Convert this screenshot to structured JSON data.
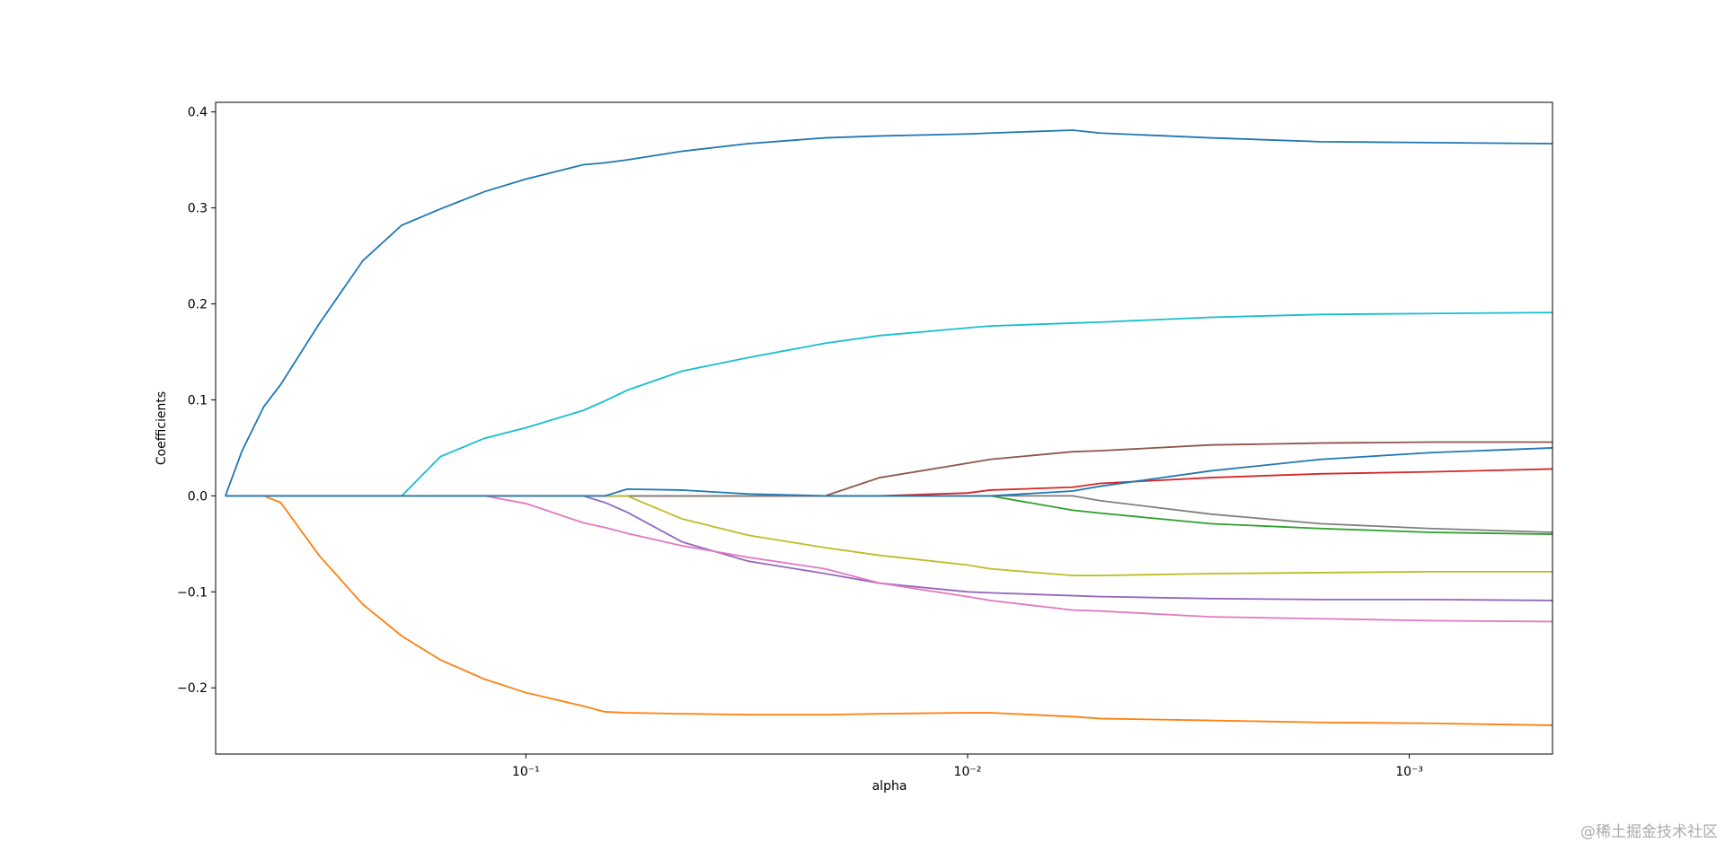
{
  "chart_data": {
    "type": "line",
    "xlabel": "alpha",
    "ylabel": "Coefficients",
    "xscale": "log",
    "xlim": [
      0.504,
      0.000474
    ],
    "ylim": [
      -0.269,
      0.41
    ],
    "xticks": [
      {
        "value": 0.1,
        "label": "10⁻¹"
      },
      {
        "value": 0.01,
        "label": "10⁻²"
      },
      {
        "value": 0.001,
        "label": "10⁻³"
      }
    ],
    "yticks": [
      {
        "value": -0.2,
        "label": "−0.2"
      },
      {
        "value": -0.1,
        "label": "−0.1"
      },
      {
        "value": 0,
        "label": "0.0"
      },
      0.1,
      0.2,
      0.3,
      0.4
    ],
    "x": [
      0.479,
      0.439,
      0.392,
      0.359,
      0.294,
      0.234,
      0.191,
      0.156,
      0.124,
      0.1,
      0.0742,
      0.0662,
      0.059,
      0.0443,
      0.0314,
      0.021,
      0.0158,
      0.01,
      0.00889,
      0.00578,
      0.00501,
      0.00282,
      0.00159,
      0.000897,
      0.000474
    ],
    "series": [
      {
        "color": "#1f77b4",
        "values": [
          0,
          0.047,
          0.093,
          0.116,
          0.179,
          0.245,
          0.282,
          0.299,
          0.317,
          0.33,
          0.345,
          0.347,
          0.35,
          0.359,
          0.367,
          0.373,
          0.375,
          0.377,
          0.378,
          0.381,
          0.378,
          0.373,
          0.369,
          0.368,
          0.367
        ]
      },
      {
        "color": "#ff7f0e",
        "values": [
          0,
          0,
          0,
          -0.007,
          -0.062,
          -0.113,
          -0.146,
          -0.171,
          -0.191,
          -0.205,
          -0.219,
          -0.225,
          -0.226,
          -0.227,
          -0.228,
          -0.228,
          -0.227,
          -0.226,
          -0.226,
          -0.23,
          -0.232,
          -0.234,
          -0.236,
          -0.237,
          -0.239
        ]
      },
      {
        "color": "#2ca02c",
        "values": [
          0,
          0,
          0,
          0,
          0,
          0,
          0,
          0,
          0,
          0,
          0,
          0,
          0,
          0,
          0,
          0,
          0,
          0,
          0,
          -0.015,
          -0.018,
          -0.029,
          -0.034,
          -0.038,
          -0.04
        ]
      },
      {
        "color": "#d62728",
        "values": [
          0,
          0,
          0,
          0,
          0,
          0,
          0,
          0,
          0,
          0,
          0,
          0,
          0,
          0,
          0,
          0,
          0,
          0.003,
          0.006,
          0.009,
          0.013,
          0.019,
          0.023,
          0.025,
          0.028
        ]
      },
      {
        "color": "#9467bd",
        "values": [
          0,
          0,
          0,
          0,
          0,
          0,
          0,
          0,
          0,
          0,
          0,
          -0.007,
          -0.017,
          -0.048,
          -0.068,
          -0.081,
          -0.091,
          -0.1,
          -0.101,
          -0.104,
          -0.105,
          -0.107,
          -0.108,
          -0.108,
          -0.109
        ]
      },
      {
        "color": "#8c564b",
        "values": [
          0,
          0,
          0,
          0,
          0,
          0,
          0,
          0,
          0,
          0,
          0,
          0,
          0,
          0,
          0,
          0,
          0.019,
          0.034,
          0.038,
          0.046,
          0.047,
          0.053,
          0.055,
          0.056,
          0.056
        ]
      },
      {
        "color": "#e377c2",
        "values": [
          0,
          0,
          0,
          0,
          0,
          0,
          0,
          0,
          0,
          -0.008,
          -0.028,
          -0.033,
          -0.039,
          -0.052,
          -0.064,
          -0.076,
          -0.091,
          -0.105,
          -0.109,
          -0.119,
          -0.12,
          -0.126,
          -0.128,
          -0.13,
          -0.131
        ]
      },
      {
        "color": "#7f7f7f",
        "values": [
          0,
          0,
          0,
          0,
          0,
          0,
          0,
          0,
          0,
          0,
          0,
          0,
          0,
          0,
          0,
          0,
          0,
          0,
          0,
          0,
          -0.005,
          -0.019,
          -0.029,
          -0.034,
          -0.038
        ]
      },
      {
        "color": "#bcbd22",
        "values": [
          0,
          0,
          0,
          0,
          0,
          0,
          0,
          0,
          0,
          0,
          0,
          0,
          0,
          -0.024,
          -0.041,
          -0.054,
          -0.062,
          -0.072,
          -0.076,
          -0.083,
          -0.083,
          -0.081,
          -0.08,
          -0.079,
          -0.079
        ]
      },
      {
        "color": "#17becf",
        "values": [
          0,
          0,
          0,
          0,
          0,
          0,
          0,
          0.041,
          0.06,
          0.071,
          0.089,
          0.099,
          0.11,
          0.13,
          0.144,
          0.159,
          0.167,
          0.175,
          0.177,
          0.18,
          0.181,
          0.186,
          0.189,
          0.19,
          0.191
        ]
      },
      {
        "color": "#1f77b4",
        "values": [
          0,
          0,
          0,
          0,
          0,
          0,
          0,
          0,
          0,
          0,
          0,
          0,
          0.007,
          0.006,
          0.002,
          0,
          0,
          0,
          0,
          0.005,
          0.01,
          0.026,
          0.038,
          0.045,
          0.05
        ]
      }
    ]
  },
  "watermark": "@稀土掘金技术社区"
}
